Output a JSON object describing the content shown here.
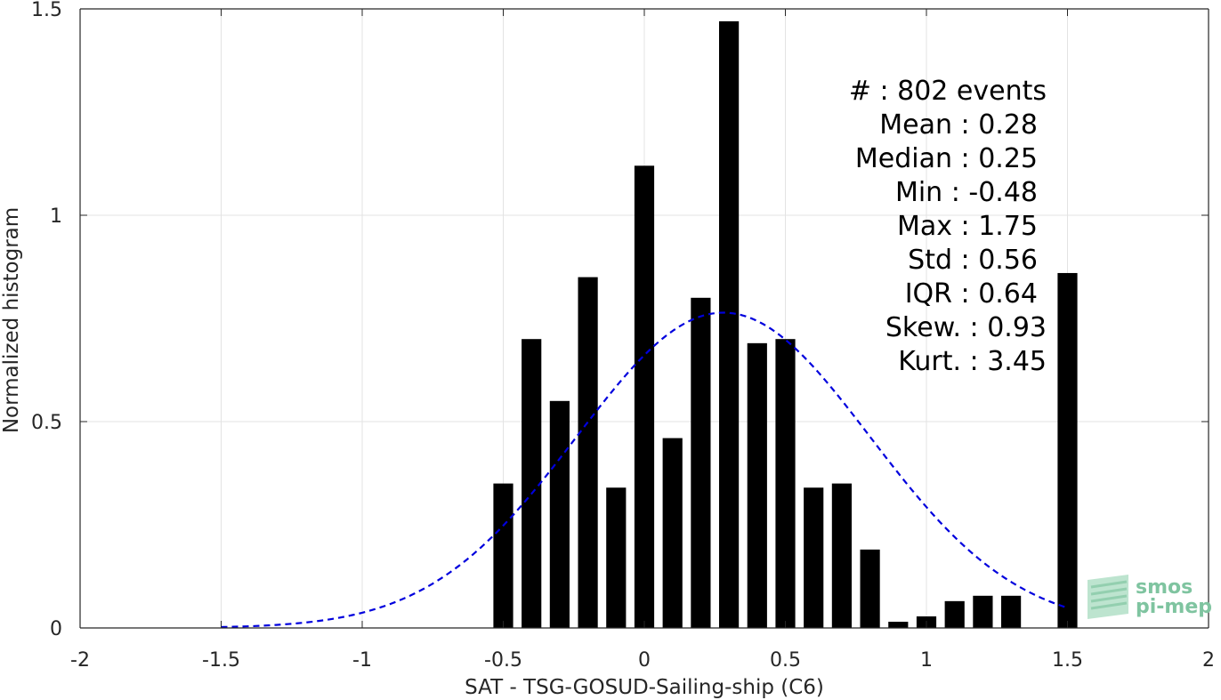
{
  "chart_data": {
    "type": "bar",
    "xlabel": "SAT - TSG-GOSUD-Sailing-ship (C6)",
    "ylabel": "Normalized histogram",
    "xlim": [
      -2,
      2
    ],
    "ylim": [
      0,
      1.5
    ],
    "x_ticks": [
      "-2",
      "-1.5",
      "-1",
      "-0.5",
      "0",
      "0.5",
      "1",
      "1.5",
      "2"
    ],
    "y_ticks": [
      "0",
      "0.5",
      "1",
      "1.5"
    ],
    "grid": true,
    "bar_width": 0.07,
    "bars": [
      {
        "x": -0.5,
        "y": 0.35
      },
      {
        "x": -0.4,
        "y": 0.7
      },
      {
        "x": -0.3,
        "y": 0.55
      },
      {
        "x": -0.2,
        "y": 0.85
      },
      {
        "x": -0.1,
        "y": 0.34
      },
      {
        "x": 0.0,
        "y": 1.12
      },
      {
        "x": 0.1,
        "y": 0.46
      },
      {
        "x": 0.2,
        "y": 0.8
      },
      {
        "x": 0.3,
        "y": 1.47
      },
      {
        "x": 0.4,
        "y": 0.69
      },
      {
        "x": 0.5,
        "y": 0.7
      },
      {
        "x": 0.6,
        "y": 0.34
      },
      {
        "x": 0.7,
        "y": 0.35
      },
      {
        "x": 0.8,
        "y": 0.19
      },
      {
        "x": 0.9,
        "y": 0.015
      },
      {
        "x": 1.0,
        "y": 0.028
      },
      {
        "x": 1.1,
        "y": 0.065
      },
      {
        "x": 1.2,
        "y": 0.078
      },
      {
        "x": 1.3,
        "y": 0.078
      },
      {
        "x": 1.5,
        "y": 0.86
      }
    ],
    "fit_curve": {
      "type": "normal",
      "mean": 0.28,
      "std": 0.52,
      "x_range": [
        -1.5,
        1.5
      ],
      "color": "#0000dd",
      "style": "dashed"
    },
    "bar_color": "#000000"
  },
  "stats": [
    {
      "label": "#  : 802 events"
    },
    {
      "label": "Mean : 0.28"
    },
    {
      "label": "Median : 0.25"
    },
    {
      "label": "Min : -0.48"
    },
    {
      "label": "Max : 1.75"
    },
    {
      "label": "Std : 0.56"
    },
    {
      "label": "IQR : 0.64"
    },
    {
      "label": "Skew. : 0.93"
    },
    {
      "label": "Kurt. : 3.45"
    }
  ],
  "logo": {
    "line1": "smos",
    "line2": "pi-mep",
    "color": "#7fc4a0"
  }
}
